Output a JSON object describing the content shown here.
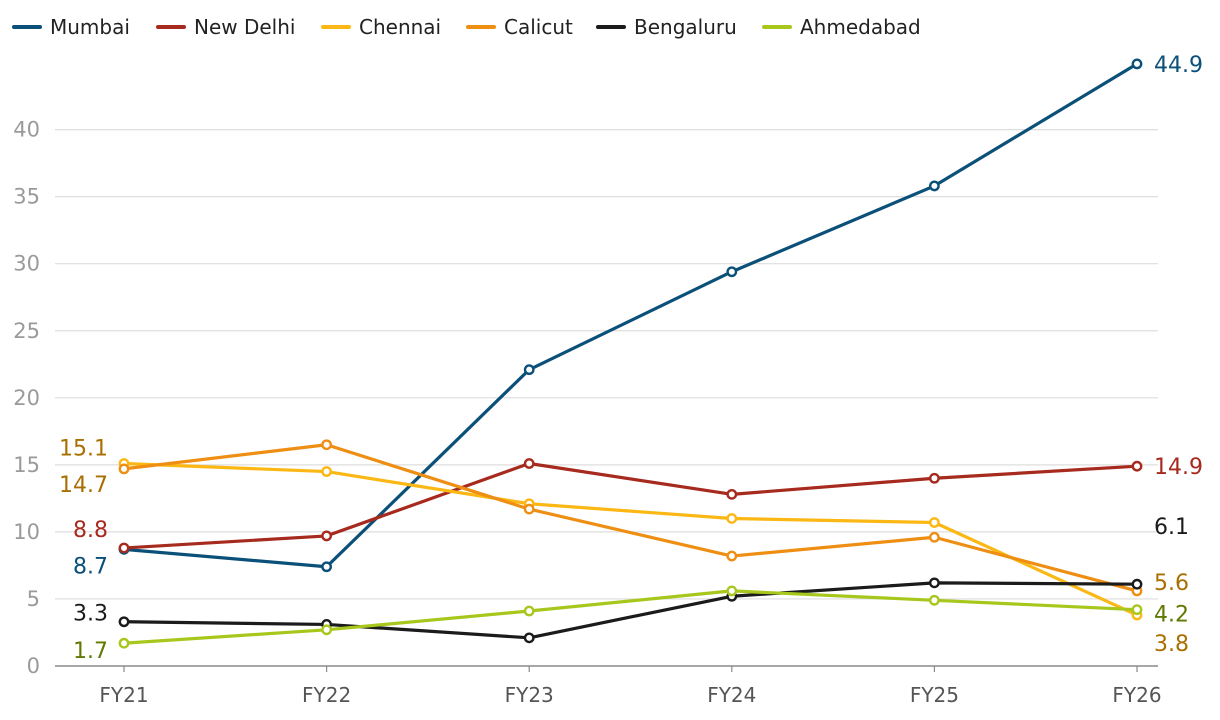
{
  "chart_data": {
    "type": "line",
    "title": "",
    "xlabel": "",
    "ylabel": "",
    "categories": [
      "FY21",
      "FY22",
      "FY23",
      "FY24",
      "FY25",
      "FY26"
    ],
    "ylim": [
      0,
      45
    ],
    "yticks": [
      0,
      5,
      10,
      15,
      20,
      25,
      30,
      35,
      40
    ],
    "grid": true,
    "legend_position": "top",
    "series": [
      {
        "name": "Mumbai",
        "color": "#0b5079",
        "values": [
          8.7,
          7.4,
          22.1,
          29.4,
          35.8,
          44.9
        ]
      },
      {
        "name": "New Delhi",
        "color": "#a72a1e",
        "values": [
          8.8,
          9.7,
          15.1,
          12.8,
          14.0,
          14.9
        ]
      },
      {
        "name": "Chennai",
        "color": "#fbb714",
        "values": [
          15.1,
          14.5,
          12.1,
          11.0,
          10.7,
          3.8
        ]
      },
      {
        "name": "Calicut",
        "color": "#ee8e12",
        "values": [
          14.7,
          16.5,
          11.7,
          8.2,
          9.6,
          5.6
        ]
      },
      {
        "name": "Bengaluru",
        "color": "#1b1b1b",
        "values": [
          3.3,
          3.1,
          2.1,
          5.2,
          6.2,
          6.1
        ]
      },
      {
        "name": "Ahmedabad",
        "color": "#a8c71c",
        "values": [
          1.7,
          2.7,
          4.1,
          5.6,
          4.9,
          4.2
        ]
      }
    ],
    "data_labels": [
      {
        "text": "15.1",
        "series": "Chennai",
        "index": 0,
        "side": "left",
        "color": "#a96f00"
      },
      {
        "text": "14.7",
        "series": "Calicut",
        "index": 0,
        "side": "left",
        "color": "#a96f00"
      },
      {
        "text": "8.8",
        "series": "New Delhi",
        "index": 0,
        "side": "left",
        "color": "#a72a1e"
      },
      {
        "text": "8.7",
        "series": "Mumbai",
        "index": 0,
        "side": "left",
        "color": "#0b5079"
      },
      {
        "text": "3.3",
        "series": "Bengaluru",
        "index": 0,
        "side": "left",
        "color": "#1b1b1b"
      },
      {
        "text": "1.7",
        "series": "Ahmedabad",
        "index": 0,
        "side": "left",
        "color": "#5e7a00"
      },
      {
        "text": "44.9",
        "series": "Mumbai",
        "index": 5,
        "side": "right",
        "color": "#0b5079"
      },
      {
        "text": "14.9",
        "series": "New Delhi",
        "index": 5,
        "side": "right",
        "color": "#a72a1e"
      },
      {
        "text": "6.1",
        "series": "Bengaluru",
        "index": 5,
        "side": "right",
        "color": "#1b1b1b"
      },
      {
        "text": "5.6",
        "series": "Calicut",
        "index": 5,
        "side": "right",
        "color": "#a96f00"
      },
      {
        "text": "4.2",
        "series": "Ahmedabad",
        "index": 5,
        "side": "right",
        "color": "#5e7a00"
      },
      {
        "text": "3.8",
        "series": "Chennai",
        "index": 5,
        "side": "right",
        "color": "#a96f00"
      }
    ]
  }
}
